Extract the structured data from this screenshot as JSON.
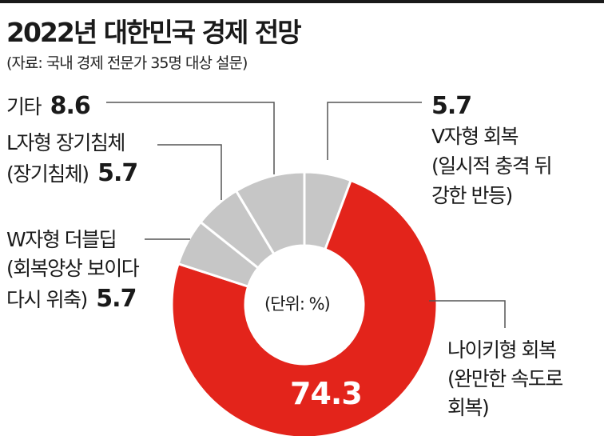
{
  "title": "2022년 대한민국 경제 전망",
  "subtitle": "(자료: 국내 경제 전문가 35명 대상 설문)",
  "center_label": "(단위: %)",
  "colors": {
    "highlight": "#e3241b",
    "other": "#c6c6c6",
    "line": "#555555"
  },
  "chart_data": {
    "type": "pie",
    "variant": "donut",
    "unit": "%",
    "slices": [
      {
        "label": "V자형 회복 (일시적 충격 뒤 강한 반등)",
        "value": 5.7,
        "label_lines": [
          "V자형 회복",
          "(일시적 충격 뒤",
          "강한 반등)"
        ]
      },
      {
        "label": "나이키형 회복 (완만한 속도로 회복)",
        "value": 74.3,
        "label_lines": [
          "나이키형 회복",
          "(완만한 속도로",
          "회복)"
        ]
      },
      {
        "label": "W자형 더블딥 (회복양상 보이다 다시 위축)",
        "value": 5.7,
        "label_lines": [
          "W자형 더블딥",
          "(회복양상 보이다",
          "다시 위축)"
        ]
      },
      {
        "label": "L자형 장기침체 (장기침체)",
        "value": 5.7,
        "label_lines": [
          "L자형 장기침체",
          "(장기침체)"
        ]
      },
      {
        "label": "기타",
        "value": 8.6,
        "label_lines": [
          "기타"
        ]
      }
    ]
  }
}
